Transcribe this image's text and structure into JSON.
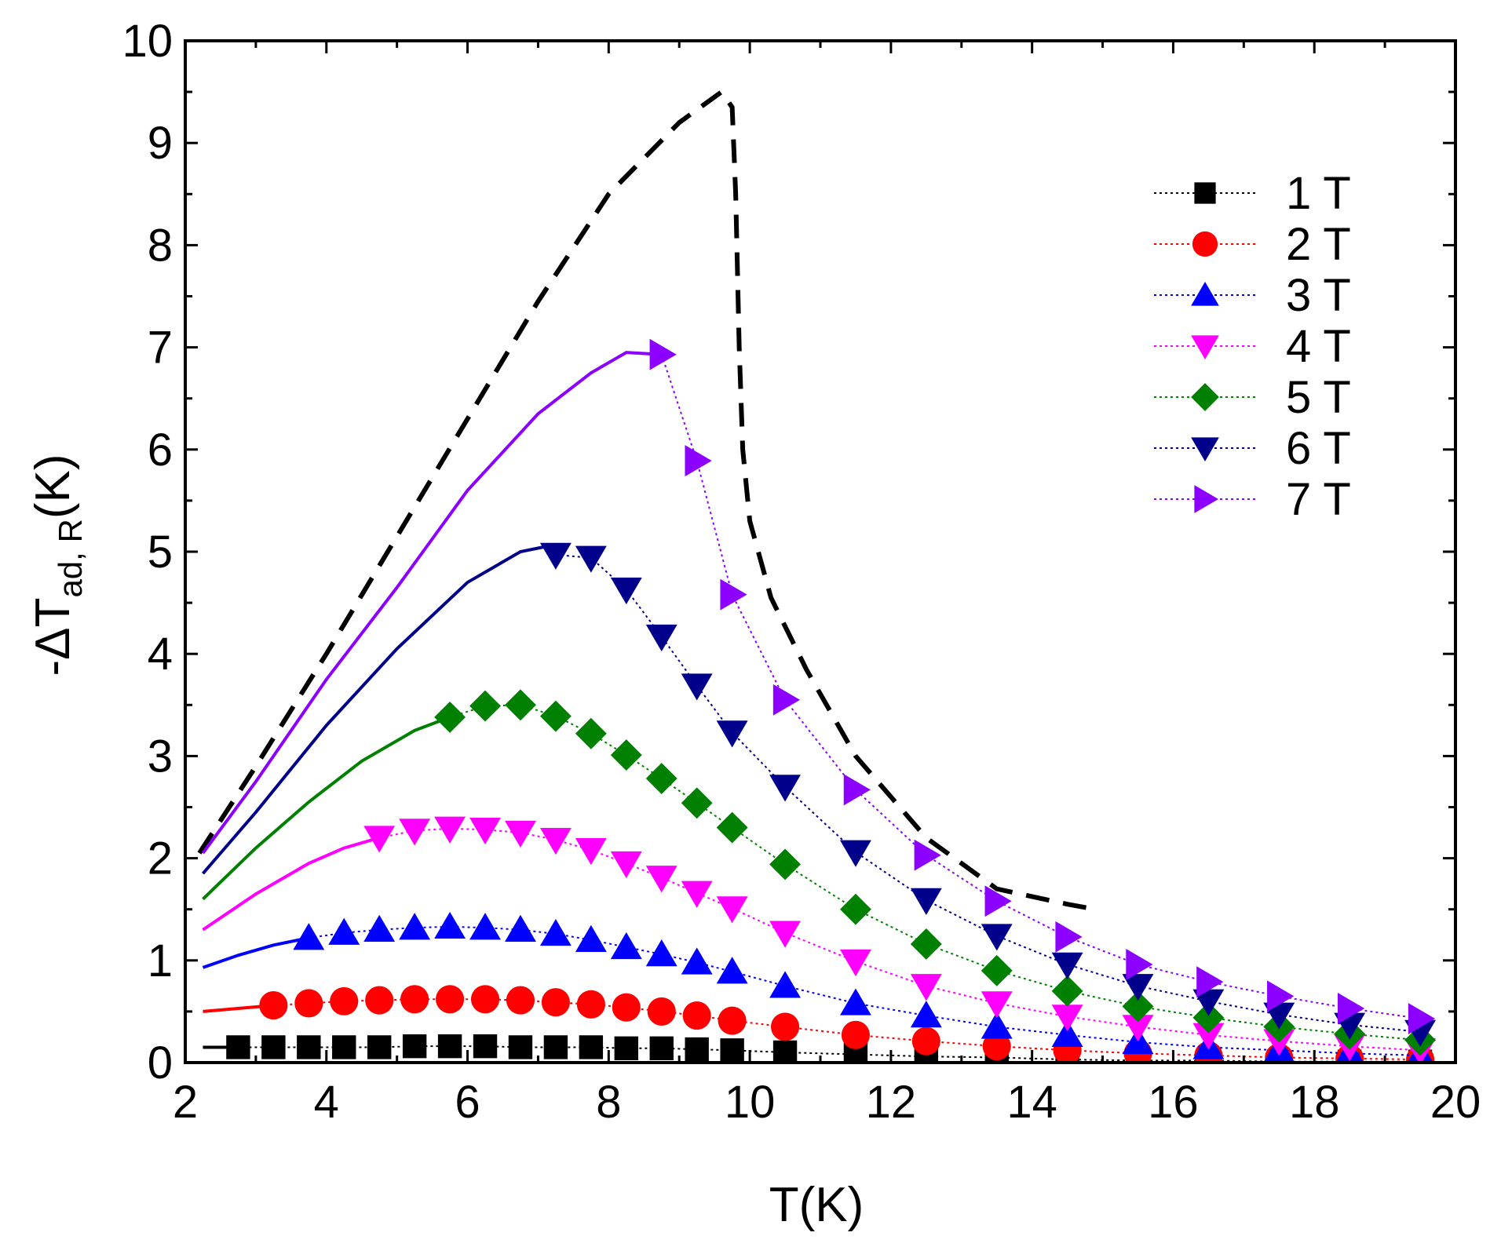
{
  "chart_data": {
    "type": "line",
    "title": "",
    "xlabel": "T(K)",
    "ylabel_parts": {
      "prefix": "-ΔT",
      "subscript": "ad, R",
      "suffix": "(K)"
    },
    "xlim": [
      2,
      20
    ],
    "ylim": [
      0,
      10
    ],
    "xticks": [
      "2",
      "4",
      "6",
      "8",
      "10",
      "12",
      "14",
      "16",
      "18",
      "20"
    ],
    "yticks": [
      "0",
      "1",
      "2",
      "3",
      "4",
      "5",
      "6",
      "7",
      "8",
      "9",
      "10"
    ],
    "grid": false,
    "legend_position": "top-right",
    "envelope": {
      "name": "upper bound (dashed)",
      "color": "#000000",
      "x": [
        2.2,
        3.0,
        4.0,
        5.0,
        6.0,
        7.0,
        8.0,
        9.0,
        9.6,
        9.75,
        9.8,
        9.85,
        9.9,
        10.0,
        10.3,
        10.8,
        11.5,
        12.5,
        13.5,
        14.5,
        14.9
      ],
      "y": [
        2.05,
        2.9,
        4.0,
        5.15,
        6.3,
        7.45,
        8.5,
        9.2,
        9.5,
        9.35,
        8.5,
        7.0,
        6.0,
        5.3,
        4.55,
        3.85,
        3.0,
        2.2,
        1.7,
        1.55,
        1.5
      ]
    },
    "series": [
      {
        "name": "1 T",
        "color": "#000000",
        "marker": "square",
        "curve_x": [
          2.25,
          2.75
        ],
        "curve_y": [
          0.15,
          0.15
        ],
        "x": [
          2.75,
          3.25,
          3.75,
          4.25,
          4.75,
          5.25,
          5.75,
          6.25,
          6.75,
          7.25,
          7.75,
          8.25,
          8.75,
          9.25,
          9.75,
          10.5,
          11.5,
          12.5,
          13.5,
          14.5,
          15.5,
          16.5,
          17.5,
          18.5,
          19.5
        ],
        "y": [
          0.15,
          0.15,
          0.15,
          0.15,
          0.15,
          0.16,
          0.16,
          0.16,
          0.15,
          0.15,
          0.15,
          0.14,
          0.14,
          0.13,
          0.12,
          0.1,
          0.08,
          0.06,
          0.05,
          0.03,
          0.02,
          0.02,
          0.01,
          0.01,
          0.01
        ]
      },
      {
        "name": "2 T",
        "color": "#ff0000",
        "marker": "circle",
        "curve_x": [
          2.25,
          2.75,
          3.25
        ],
        "curve_y": [
          0.5,
          0.53,
          0.56
        ],
        "x": [
          3.25,
          3.75,
          4.25,
          4.75,
          5.25,
          5.75,
          6.25,
          6.75,
          7.25,
          7.75,
          8.25,
          8.75,
          9.25,
          9.75,
          10.5,
          11.5,
          12.5,
          13.5,
          14.5,
          15.5,
          16.5,
          17.5,
          18.5,
          19.5
        ],
        "y": [
          0.56,
          0.58,
          0.6,
          0.61,
          0.62,
          0.62,
          0.62,
          0.61,
          0.59,
          0.57,
          0.54,
          0.5,
          0.46,
          0.41,
          0.35,
          0.27,
          0.21,
          0.16,
          0.12,
          0.09,
          0.07,
          0.05,
          0.04,
          0.03
        ]
      },
      {
        "name": "3 T",
        "color": "#0000ff",
        "marker": "triangle-up",
        "curve_x": [
          2.25,
          2.75,
          3.25,
          3.75
        ],
        "curve_y": [
          0.93,
          1.05,
          1.15,
          1.22
        ],
        "x": [
          3.75,
          4.25,
          4.75,
          5.25,
          5.75,
          6.25,
          6.75,
          7.25,
          7.75,
          8.25,
          8.75,
          9.25,
          9.75,
          10.5,
          11.5,
          12.5,
          13.5,
          14.5,
          15.5,
          16.5,
          17.5,
          18.5,
          19.5
        ],
        "y": [
          1.22,
          1.27,
          1.3,
          1.32,
          1.33,
          1.32,
          1.3,
          1.26,
          1.2,
          1.13,
          1.06,
          0.98,
          0.89,
          0.75,
          0.58,
          0.46,
          0.35,
          0.27,
          0.2,
          0.15,
          0.12,
          0.09,
          0.07
        ]
      },
      {
        "name": "4 T",
        "color": "#ff00ff",
        "marker": "triangle-down",
        "curve_x": [
          2.25,
          3.0,
          3.75,
          4.25,
          4.75
        ],
        "curve_y": [
          1.3,
          1.65,
          1.95,
          2.1,
          2.2
        ],
        "x": [
          4.75,
          5.25,
          5.75,
          6.25,
          6.75,
          7.25,
          7.75,
          8.25,
          8.75,
          9.25,
          9.75,
          10.5,
          11.5,
          12.5,
          13.5,
          14.5,
          15.5,
          16.5,
          17.5,
          18.5,
          19.5
        ],
        "y": [
          2.2,
          2.27,
          2.29,
          2.28,
          2.25,
          2.18,
          2.08,
          1.95,
          1.81,
          1.66,
          1.51,
          1.27,
          0.99,
          0.75,
          0.58,
          0.45,
          0.35,
          0.27,
          0.21,
          0.16,
          0.12
        ]
      },
      {
        "name": "5 T",
        "color": "#008000",
        "marker": "diamond",
        "curve_x": [
          2.25,
          3.0,
          3.75,
          4.5,
          5.25,
          5.75
        ],
        "curve_y": [
          1.6,
          2.1,
          2.55,
          2.95,
          3.25,
          3.38
        ],
        "x": [
          5.75,
          6.25,
          6.75,
          7.25,
          7.75,
          8.25,
          8.75,
          9.25,
          9.75,
          10.5,
          11.5,
          12.5,
          13.5,
          14.5,
          15.5,
          16.5,
          17.5,
          18.5,
          19.5
        ],
        "y": [
          3.38,
          3.49,
          3.5,
          3.39,
          3.22,
          3.01,
          2.78,
          2.54,
          2.3,
          1.94,
          1.5,
          1.16,
          0.9,
          0.7,
          0.55,
          0.44,
          0.35,
          0.28,
          0.22
        ]
      },
      {
        "name": "6 T",
        "color": "#00008b",
        "marker": "triangle-down",
        "curve_x": [
          2.25,
          3.0,
          4.0,
          5.0,
          6.0,
          6.75,
          7.25
        ],
        "curve_y": [
          1.85,
          2.45,
          3.3,
          4.05,
          4.7,
          5.0,
          5.07
        ],
        "x": [
          7.25,
          7.75,
          8.25,
          8.75,
          9.25,
          9.75,
          10.5,
          11.5,
          12.5,
          13.5,
          14.5,
          15.5,
          16.5,
          17.5,
          18.5,
          19.5
        ],
        "y": [
          4.97,
          4.94,
          4.63,
          4.17,
          3.69,
          3.23,
          2.7,
          2.06,
          1.59,
          1.24,
          0.96,
          0.75,
          0.6,
          0.47,
          0.37,
          0.3
        ]
      },
      {
        "name": "7 T",
        "color": "#8b00ff",
        "marker": "triangle-right",
        "curve_x": [
          2.25,
          3.0,
          4.0,
          5.0,
          6.0,
          7.0,
          7.75,
          8.25,
          8.75
        ],
        "curve_y": [
          2.05,
          2.75,
          3.75,
          4.65,
          5.6,
          6.35,
          6.75,
          6.95,
          6.93
        ],
        "x": [
          8.75,
          9.25,
          9.75,
          10.5,
          11.5,
          12.5,
          13.5,
          14.5,
          15.5,
          16.5,
          17.5,
          18.5,
          19.5
        ],
        "y": [
          6.93,
          5.89,
          4.58,
          3.55,
          2.67,
          2.03,
          1.58,
          1.23,
          0.96,
          0.79,
          0.65,
          0.53,
          0.43
        ]
      }
    ]
  }
}
